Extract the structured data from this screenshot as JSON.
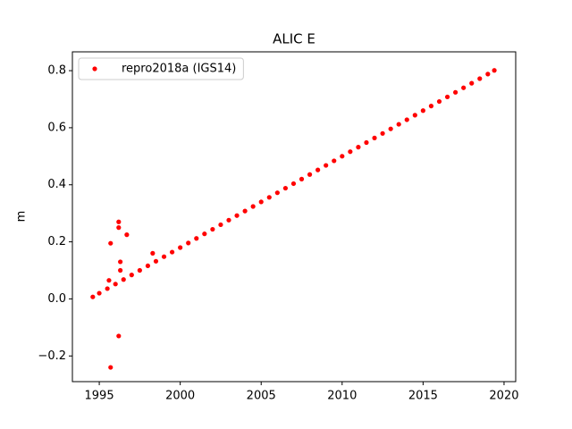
{
  "chart_data": {
    "type": "scatter",
    "title": "ALIC E",
    "y_label": "m",
    "legend_loc": "upper left",
    "xlim": [
      1993.34,
      2020.72
    ],
    "ylim": [
      -0.29,
      0.866
    ],
    "xticks": [
      1995,
      2000,
      2005,
      2010,
      2015,
      2020
    ],
    "yticks": [
      {
        "value": -0.2,
        "label": "−0.2"
      },
      {
        "value": 0.0,
        "label": "0.0"
      },
      0.2,
      0.4,
      0.6,
      0.8
    ],
    "series": [
      {
        "name": "repro2018a (IGS14)",
        "color": "#ff0000",
        "x": [
          1994.6,
          1995.0,
          1995.5,
          1996.0,
          1996.5,
          1997.0,
          1997.5,
          1998.0,
          1998.5,
          1999.0,
          1999.5,
          2000.0,
          2000.5,
          2001.0,
          2001.5,
          2002.0,
          2002.5,
          2003.0,
          2003.5,
          2004.0,
          2004.5,
          2005.0,
          2005.5,
          2006.0,
          2006.5,
          2007.0,
          2007.5,
          2008.0,
          2008.5,
          2009.0,
          2009.5,
          2010.0,
          2010.5,
          2011.0,
          2011.5,
          2012.0,
          2012.5,
          2013.0,
          2013.5,
          2014.0,
          2014.5,
          2015.0,
          2015.5,
          2016.0,
          2016.5,
          2017.0,
          2017.5,
          2018.0,
          2018.5,
          2019.0,
          2019.4,
          1995.7,
          1995.7,
          1996.2,
          1996.2,
          1996.7,
          1996.3,
          1996.3,
          1996.2,
          1995.6,
          1998.3
        ],
        "values": [
          0.007,
          0.02,
          0.036,
          0.052,
          0.068,
          0.084,
          0.1,
          0.116,
          0.132,
          0.148,
          0.164,
          0.18,
          0.196,
          0.212,
          0.228,
          0.244,
          0.26,
          0.276,
          0.292,
          0.308,
          0.324,
          0.34,
          0.356,
          0.372,
          0.388,
          0.404,
          0.42,
          0.436,
          0.452,
          0.468,
          0.484,
          0.5,
          0.516,
          0.532,
          0.548,
          0.564,
          0.58,
          0.596,
          0.612,
          0.628,
          0.644,
          0.66,
          0.676,
          0.692,
          0.708,
          0.724,
          0.74,
          0.756,
          0.772,
          0.788,
          0.801,
          0.195,
          -0.24,
          0.27,
          0.25,
          0.225,
          0.13,
          0.1,
          -0.13,
          0.065,
          0.16
        ]
      }
    ]
  }
}
